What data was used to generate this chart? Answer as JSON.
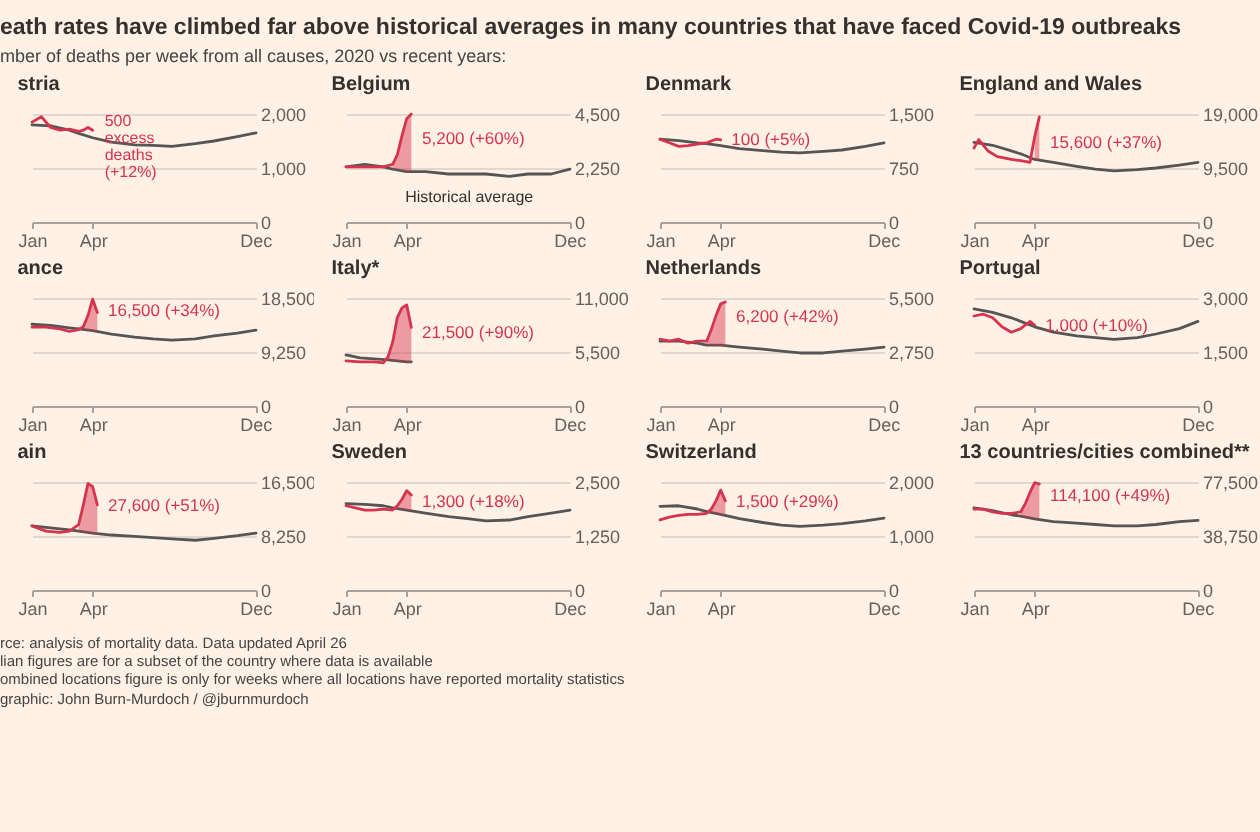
{
  "chart_data": [
    {
      "type": "other",
      "title": "eath rates have climbed far above historical averages in many countries that have faced Covid-19 outbreaks",
      "subtitle": "mber of deaths per week from all causes, 2020 vs recent years:"
    },
    {
      "type": "line",
      "title": "stria",
      "xlim": [
        "--01-01",
        "--12-02"
      ],
      "xticks": [
        {
          "value": "--01-01",
          "label": "Jan"
        },
        {
          "value": "--04-01",
          "label": "Apr"
        },
        {
          "value": "--12-01",
          "label": "Dec"
        }
      ],
      "ylim": [
        0,
        2000
      ],
      "yticks": [
        {
          "value": 0,
          "label": "0"
        },
        {
          "value": 1000,
          "label": "1,000"
        },
        {
          "value": 2000,
          "label": "2,000"
        }
      ],
      "grid": "y",
      "annotations": [
        {
          "text": "500\nexcess\ndeaths\n(+12%)",
          "x": "--04-01",
          "y": 1700
        }
      ],
      "series": [
        {
          "color": "#555555",
          "x": [
            "--01-01",
            "--01-29",
            "--02-26",
            "--03-11",
            "--04-01",
            "--04-29",
            "--06-03",
            "--07-01",
            "--07-29",
            "--09-02",
            "--09-30",
            "--11-04",
            "--12-02"
          ],
          "values": [
            1800,
            1780,
            1700,
            1640,
            1560,
            1480,
            1430,
            1420,
            1400,
            1450,
            1500,
            1580,
            1650
          ]
        },
        {
          "color": "#d6344e",
          "x": [
            "--01-01",
            "--01-15",
            "--01-29",
            "--02-12",
            "--02-26",
            "--03-11",
            "--03-18",
            "--03-25",
            "--04-01"
          ],
          "values": [
            1850,
            1950,
            1750,
            1700,
            1720,
            1680,
            1700,
            1750,
            1700
          ]
        }
      ]
    },
    {
      "type": "line",
      "title": "Belgium",
      "xlim": [
        "--01-01",
        "--12-02"
      ],
      "xticks": [
        {
          "value": "--01-01",
          "label": "Jan"
        },
        {
          "value": "--04-01",
          "label": "Apr"
        },
        {
          "value": "--12-01",
          "label": "Dec"
        }
      ],
      "ylim": [
        0,
        4500
      ],
      "yticks": [
        {
          "value": 0,
          "label": "0"
        },
        {
          "value": 2250,
          "label": "2,250"
        },
        {
          "value": 4500,
          "label": "4,500"
        }
      ],
      "grid": "y",
      "annotations": [
        {
          "text": "5,200 (+60%)",
          "x": "--04-15",
          "y": 3500
        },
        "Historical average"
      ],
      "series": [
        {
          "color": "#555555",
          "x": [
            "--01-01",
            "--01-29",
            "--02-26",
            "--03-11",
            "--04-01",
            "--04-29",
            "--06-03",
            "--07-01",
            "--07-29",
            "--09-02",
            "--09-30",
            "--11-04",
            "--12-02"
          ],
          "values": [
            2300,
            2400,
            2300,
            2200,
            2100,
            2100,
            2000,
            2000,
            2000,
            1900,
            2000,
            2000,
            2200
          ]
        },
        {
          "color": "#d6344e",
          "x": [
            "--01-01",
            "--01-15",
            "--01-29",
            "--02-12",
            "--02-26",
            "--03-11",
            "--03-18",
            "--03-25",
            "--04-01",
            "--04-08"
          ],
          "values": [
            2300,
            2300,
            2300,
            2300,
            2300,
            2400,
            2800,
            3600,
            4300,
            4500
          ],
          "lower": [
            null,
            null,
            null,
            null,
            null,
            2200,
            2200,
            2200,
            2100,
            2100
          ],
          "upper": [
            null,
            null,
            null,
            null,
            null,
            2400,
            2800,
            3600,
            4300,
            4500
          ]
        }
      ]
    },
    {
      "type": "line",
      "title": "Denmark",
      "xlim": [
        "--01-01",
        "--12-02"
      ],
      "xticks": [
        {
          "value": "--01-01",
          "label": "Jan"
        },
        {
          "value": "--04-01",
          "label": "Apr"
        },
        {
          "value": "--12-01",
          "label": "Dec"
        }
      ],
      "ylim": [
        0,
        1500
      ],
      "yticks": [
        {
          "value": 0,
          "label": "0"
        },
        750,
        {
          "value": 1500,
          "label": "1,500"
        }
      ],
      "grid": "y",
      "annotations": [
        {
          "text": "100 (+5%)",
          "x": "--04-08",
          "y": 1150
        }
      ],
      "series": [
        {
          "color": "#555555",
          "x": [
            "--01-01",
            "--01-29",
            "--02-26",
            "--03-11",
            "--04-01",
            "--04-29",
            "--06-03",
            "--07-01",
            "--07-29",
            "--09-02",
            "--09-30",
            "--11-04",
            "--12-02"
          ],
          "values": [
            1150,
            1130,
            1100,
            1090,
            1060,
            1020,
            990,
            970,
            960,
            980,
            1000,
            1050,
            1100
          ]
        },
        {
          "color": "#d6344e",
          "x": [
            "--01-01",
            "--01-15",
            "--01-29",
            "--02-12",
            "--02-26",
            "--03-11",
            "--03-25",
            "--04-01"
          ],
          "values": [
            1150,
            1100,
            1050,
            1060,
            1080,
            1100,
            1150,
            1140
          ]
        }
      ]
    },
    {
      "type": "line",
      "title": "England and Wales",
      "xlim": [
        "--01-01",
        "--12-02"
      ],
      "xticks": [
        {
          "value": "--01-01",
          "label": "Jan"
        },
        {
          "value": "--04-01",
          "label": "Apr"
        },
        {
          "value": "--12-01",
          "label": "Dec"
        }
      ],
      "ylim": [
        0,
        19000
      ],
      "yticks": [
        {
          "value": 0,
          "label": "0"
        },
        {
          "value": 9500,
          "label": "9,500"
        },
        {
          "value": 19000,
          "label": "19,000"
        }
      ],
      "grid": "y",
      "annotations": [
        {
          "text": "15,600 (+37%)",
          "x": "--04-15",
          "y": 14000
        }
      ],
      "series": [
        {
          "color": "#555555",
          "x": [
            "--01-01",
            "--01-29",
            "--02-26",
            "--03-11",
            "--04-01",
            "--04-29",
            "--06-03",
            "--07-01",
            "--07-29",
            "--09-02",
            "--09-30",
            "--11-04",
            "--12-02"
          ],
          "values": [
            14000,
            13500,
            12500,
            12000,
            11000,
            10500,
            9800,
            9300,
            9000,
            9200,
            9500,
            10000,
            10500
          ]
        },
        {
          "color": "#d6344e",
          "x": [
            "--01-01",
            "--01-08",
            "--01-22",
            "--02-05",
            "--02-26",
            "--03-11",
            "--03-25",
            "--04-01",
            "--04-08"
          ],
          "values": [
            13000,
            14500,
            12500,
            11500,
            11000,
            10800,
            10500,
            15000,
            18500
          ],
          "lower": [
            null,
            null,
            null,
            null,
            null,
            null,
            null,
            11000,
            10900
          ],
          "upper": [
            null,
            null,
            null,
            null,
            null,
            null,
            null,
            15000,
            18500
          ]
        }
      ]
    },
    {
      "type": "line",
      "title": "ance",
      "xlim": [
        "--01-01",
        "--12-02"
      ],
      "xticks": [
        {
          "value": "--01-01",
          "label": "Jan"
        },
        {
          "value": "--04-01",
          "label": "Apr"
        },
        {
          "value": "--12-01",
          "label": "Dec"
        }
      ],
      "ylim": [
        0,
        18500
      ],
      "yticks": [
        {
          "value": 0,
          "label": "0"
        },
        {
          "value": 9250,
          "label": "9,250"
        },
        {
          "value": 18500,
          "label": "18,500"
        }
      ],
      "grid": "y",
      "annotations": [
        {
          "text": "16,500 (+34%)",
          "x": "--04-15",
          "y": 16500
        }
      ],
      "series": [
        {
          "color": "#555555",
          "x": [
            "--01-01",
            "--01-29",
            "--02-26",
            "--03-11",
            "--04-01",
            "--04-29",
            "--06-03",
            "--07-01",
            "--07-29",
            "--09-02",
            "--09-30",
            "--11-04",
            "--12-02"
          ],
          "values": [
            14000,
            13800,
            13400,
            13200,
            12900,
            12300,
            11800,
            11500,
            11300,
            11500,
            12000,
            12500,
            13000
          ]
        },
        {
          "color": "#d6344e",
          "x": [
            "--01-01",
            "--01-22",
            "--02-12",
            "--02-26",
            "--03-11",
            "--03-18",
            "--03-25",
            "--04-01",
            "--04-08"
          ],
          "values": [
            13500,
            13500,
            13200,
            12800,
            13100,
            13600,
            15500,
            18300,
            16000
          ],
          "lower": [
            null,
            null,
            null,
            null,
            null,
            13100,
            13000,
            12900,
            12800
          ],
          "upper": [
            null,
            null,
            null,
            null,
            null,
            13600,
            15500,
            18300,
            16000
          ]
        }
      ]
    },
    {
      "type": "line",
      "title": "Italy*",
      "xlim": [
        "--01-01",
        "--12-02"
      ],
      "xticks": [
        {
          "value": "--01-01",
          "label": "Jan"
        },
        {
          "value": "--04-01",
          "label": "Apr"
        },
        {
          "value": "--12-01",
          "label": "Dec"
        }
      ],
      "ylim": [
        0,
        11000
      ],
      "yticks": [
        {
          "value": 0,
          "label": "0"
        },
        {
          "value": 5500,
          "label": "5,500"
        },
        {
          "value": 11000,
          "label": "11,000"
        }
      ],
      "grid": "y",
      "annotations": [
        {
          "text": "21,500 (+90%)",
          "x": "--04-15",
          "y": 7500
        }
      ],
      "series": [
        {
          "color": "#555555",
          "x": [
            "--01-01",
            "--01-22",
            "--02-12",
            "--03-04",
            "--03-18",
            "--04-01",
            "--04-08"
          ],
          "values": [
            5200,
            4900,
            4800,
            4700,
            4600,
            4500,
            4500
          ]
        },
        {
          "color": "#d6344e",
          "x": [
            "--01-01",
            "--01-22",
            "--02-12",
            "--02-26",
            "--03-04",
            "--03-11",
            "--03-18",
            "--03-25",
            "--04-01",
            "--04-08"
          ],
          "values": [
            4600,
            4500,
            4500,
            4400,
            5000,
            6500,
            9000,
            10000,
            10300,
            8000
          ],
          "lower": [
            null,
            null,
            null,
            null,
            4700,
            4650,
            4600,
            4550,
            4500,
            4500
          ],
          "upper": [
            null,
            null,
            null,
            null,
            5000,
            6500,
            9000,
            10000,
            10300,
            8000
          ]
        }
      ]
    },
    {
      "type": "line",
      "title": "Netherlands",
      "xlim": [
        "--01-01",
        "--12-02"
      ],
      "xticks": [
        {
          "value": "--01-01",
          "label": "Jan"
        },
        {
          "value": "--04-01",
          "label": "Apr"
        },
        {
          "value": "--12-01",
          "label": "Dec"
        }
      ],
      "ylim": [
        0,
        5500
      ],
      "yticks": [
        {
          "value": 0,
          "label": "0"
        },
        {
          "value": 2750,
          "label": "2,750"
        },
        {
          "value": 5500,
          "label": "5,500"
        }
      ],
      "grid": "y",
      "annotations": [
        {
          "text": "6,200 (+42%)",
          "x": "--04-15",
          "y": 4600
        }
      ],
      "series": [
        {
          "color": "#555555",
          "x": [
            "--01-01",
            "--01-29",
            "--02-26",
            "--03-11",
            "--04-01",
            "--04-29",
            "--06-03",
            "--07-01",
            "--07-29",
            "--09-02",
            "--09-30",
            "--11-04",
            "--12-02"
          ],
          "values": [
            3300,
            3300,
            3200,
            3100,
            3100,
            3000,
            2900,
            2800,
            2700,
            2700,
            2800,
            2900,
            3000
          ]
        },
        {
          "color": "#d6344e",
          "x": [
            "--01-01",
            "--01-15",
            "--01-29",
            "--02-12",
            "--02-26",
            "--03-11",
            "--03-18",
            "--03-25",
            "--04-01",
            "--04-08"
          ],
          "values": [
            3400,
            3300,
            3400,
            3200,
            3300,
            3300,
            3900,
            4600,
            5200,
            5300
          ],
          "lower": [
            null,
            null,
            null,
            null,
            null,
            3100,
            3100,
            3100,
            3100,
            3000
          ],
          "upper": [
            null,
            null,
            null,
            null,
            null,
            3300,
            3900,
            4600,
            5200,
            5300
          ]
        }
      ]
    },
    {
      "type": "line",
      "title": "Portugal",
      "xlim": [
        "--01-01",
        "--12-02"
      ],
      "xticks": [
        {
          "value": "--01-01",
          "label": "Jan"
        },
        {
          "value": "--04-01",
          "label": "Apr"
        },
        {
          "value": "--12-01",
          "label": "Dec"
        }
      ],
      "ylim": [
        0,
        3000
      ],
      "yticks": [
        {
          "value": 0,
          "label": "0"
        },
        {
          "value": 1500,
          "label": "1,500"
        },
        {
          "value": 3000,
          "label": "3,000"
        }
      ],
      "grid": "y",
      "annotations": [
        {
          "text": "1,000 (+10%)",
          "x": "--04-08",
          "y": 2250
        }
      ],
      "series": [
        {
          "color": "#555555",
          "x": [
            "--01-01",
            "--01-29",
            "--02-26",
            "--03-11",
            "--04-01",
            "--04-29",
            "--06-03",
            "--07-01",
            "--07-29",
            "--09-02",
            "--09-30",
            "--11-04",
            "--12-02"
          ],
          "values": [
            2700,
            2600,
            2450,
            2350,
            2200,
            2050,
            1950,
            1900,
            1850,
            1900,
            2000,
            2150,
            2350
          ]
        },
        {
          "color": "#d6344e",
          "x": [
            "--01-01",
            "--01-15",
            "--01-29",
            "--02-12",
            "--02-26",
            "--03-11",
            "--03-25",
            "--04-01"
          ],
          "values": [
            2500,
            2550,
            2450,
            2200,
            2050,
            2150,
            2350,
            2250
          ]
        }
      ]
    },
    {
      "type": "line",
      "title": "ain",
      "xlim": [
        "--01-01",
        "--12-02"
      ],
      "xticks": [
        {
          "value": "--01-01",
          "label": "Jan"
        },
        {
          "value": "--04-01",
          "label": "Apr"
        },
        {
          "value": "--12-01",
          "label": "Dec"
        }
      ],
      "ylim": [
        0,
        16500
      ],
      "yticks": [
        {
          "value": 0,
          "label": "0"
        },
        {
          "value": 8250,
          "label": "8,250"
        },
        {
          "value": 16500,
          "label": "16,500"
        }
      ],
      "grid": "y",
      "annotations": [
        {
          "text": "27,600 (+51%)",
          "x": "--04-15",
          "y": 13000
        }
      ],
      "series": [
        {
          "color": "#555555",
          "x": [
            "--01-01",
            "--01-29",
            "--02-26",
            "--03-11",
            "--04-01",
            "--04-29",
            "--06-03",
            "--07-01",
            "--07-29",
            "--09-02",
            "--09-30",
            "--11-04",
            "--12-02"
          ],
          "values": [
            9800,
            9500,
            9200,
            9000,
            8700,
            8400,
            8200,
            8000,
            7800,
            7600,
            7900,
            8300,
            8700
          ]
        },
        {
          "color": "#d6344e",
          "x": [
            "--01-01",
            "--01-22",
            "--02-12",
            "--02-26",
            "--03-11",
            "--03-18",
            "--03-25",
            "--04-01",
            "--04-08"
          ],
          "values": [
            9800,
            9000,
            8800,
            9000,
            10000,
            13000,
            16300,
            15800,
            13000
          ],
          "lower": [
            null,
            null,
            null,
            null,
            9000,
            8900,
            8800,
            8700,
            8650
          ],
          "upper": [
            null,
            null,
            null,
            null,
            10000,
            13000,
            16300,
            15800,
            13000
          ]
        }
      ]
    },
    {
      "type": "line",
      "title": "Sweden",
      "xlim": [
        "--01-01",
        "--12-02"
      ],
      "xticks": [
        {
          "value": "--01-01",
          "label": "Jan"
        },
        {
          "value": "--04-01",
          "label": "Apr"
        },
        {
          "value": "--12-01",
          "label": "Dec"
        }
      ],
      "ylim": [
        0,
        2500
      ],
      "yticks": [
        {
          "value": 0,
          "label": "0"
        },
        {
          "value": 1250,
          "label": "1,250"
        },
        {
          "value": 2500,
          "label": "2,500"
        }
      ],
      "grid": "y",
      "annotations": [
        {
          "text": "1,300 (+18%)",
          "x": "--04-15",
          "y": 2050
        }
      ],
      "series": [
        {
          "color": "#555555",
          "x": [
            "--01-01",
            "--01-29",
            "--02-26",
            "--03-11",
            "--04-01",
            "--04-29",
            "--06-03",
            "--07-01",
            "--07-29",
            "--09-02",
            "--09-30",
            "--11-04",
            "--12-02"
          ],
          "values": [
            2000,
            1980,
            1950,
            1900,
            1850,
            1780,
            1700,
            1650,
            1600,
            1620,
            1700,
            1780,
            1850
          ]
        },
        {
          "color": "#d6344e",
          "x": [
            "--01-01",
            "--01-15",
            "--01-29",
            "--02-12",
            "--02-26",
            "--03-11",
            "--03-18",
            "--03-25",
            "--04-01",
            "--04-08"
          ],
          "values": [
            1950,
            1900,
            1850,
            1850,
            1870,
            1850,
            1950,
            2100,
            2300,
            2200
          ],
          "lower": [
            null,
            null,
            null,
            null,
            null,
            null,
            1890,
            1870,
            1850,
            1840
          ],
          "upper": [
            null,
            null,
            null,
            null,
            null,
            null,
            1950,
            2100,
            2300,
            2200
          ]
        }
      ]
    },
    {
      "type": "line",
      "title": "Switzerland",
      "xlim": [
        "--01-01",
        "--12-02"
      ],
      "xticks": [
        {
          "value": "--01-01",
          "label": "Jan"
        },
        {
          "value": "--04-01",
          "label": "Apr"
        },
        {
          "value": "--12-01",
          "label": "Dec"
        }
      ],
      "ylim": [
        0,
        2000
      ],
      "yticks": [
        {
          "value": 0,
          "label": "0"
        },
        {
          "value": 1000,
          "label": "1,000"
        },
        {
          "value": 2000,
          "label": "2,000"
        }
      ],
      "grid": "y",
      "annotations": [
        {
          "text": "1,500 (+29%)",
          "x": "--04-15",
          "y": 1650
        }
      ],
      "series": [
        {
          "color": "#555555",
          "x": [
            "--01-01",
            "--01-29",
            "--02-26",
            "--03-11",
            "--04-01",
            "--04-29",
            "--06-03",
            "--07-01",
            "--07-29",
            "--09-02",
            "--09-30",
            "--11-04",
            "--12-02"
          ],
          "values": [
            1550,
            1560,
            1500,
            1450,
            1400,
            1320,
            1250,
            1200,
            1180,
            1200,
            1230,
            1280,
            1330
          ]
        },
        {
          "color": "#d6344e",
          "x": [
            "--01-01",
            "--01-15",
            "--01-29",
            "--02-12",
            "--02-26",
            "--03-11",
            "--03-18",
            "--03-25",
            "--04-01",
            "--04-08"
          ],
          "values": [
            1300,
            1350,
            1380,
            1400,
            1400,
            1420,
            1500,
            1650,
            1850,
            1650
          ],
          "lower": [
            null,
            null,
            null,
            null,
            null,
            null,
            1430,
            1420,
            1400,
            1390
          ],
          "upper": [
            null,
            null,
            null,
            null,
            null,
            null,
            1500,
            1650,
            1850,
            1650
          ]
        }
      ]
    },
    {
      "type": "line",
      "title": "13 countries/cities combined**",
      "xlim": [
        "--01-01",
        "--12-02"
      ],
      "xticks": [
        {
          "value": "--01-01",
          "label": "Jan"
        },
        {
          "value": "--04-01",
          "label": "Apr"
        },
        {
          "value": "--12-01",
          "label": "Dec"
        }
      ],
      "ylim": [
        0,
        77500
      ],
      "yticks": [
        {
          "value": 0,
          "label": "0"
        },
        {
          "value": 38750,
          "label": "38,750"
        },
        {
          "value": 77500,
          "label": "77,500"
        }
      ],
      "grid": "y",
      "annotations": [
        {
          "text": "114,100 (+49%)",
          "x": "--04-15",
          "y": 68000
        }
      ],
      "series": [
        {
          "color": "#555555",
          "x": [
            "--01-01",
            "--01-29",
            "--02-26",
            "--03-11",
            "--04-01",
            "--04-29",
            "--06-03",
            "--07-01",
            "--07-29",
            "--09-02",
            "--09-30",
            "--11-04",
            "--12-02"
          ],
          "values": [
            59000,
            57000,
            54000,
            53000,
            51000,
            49000,
            48000,
            47000,
            46000,
            46000,
            47000,
            49000,
            50000
          ]
        },
        {
          "color": "#d6344e",
          "x": [
            "--01-01",
            "--01-15",
            "--01-29",
            "--02-12",
            "--02-26",
            "--03-11",
            "--03-18",
            "--03-25",
            "--04-01",
            "--04-08"
          ],
          "values": [
            58000,
            58000,
            56000,
            55000,
            55000,
            56000,
            62000,
            70000,
            77000,
            76000
          ],
          "lower": [
            null,
            null,
            null,
            null,
            null,
            53000,
            52000,
            52000,
            51000,
            51000
          ],
          "upper": [
            null,
            null,
            null,
            null,
            null,
            56000,
            62000,
            70000,
            77000,
            76000
          ]
        }
      ]
    },
    {
      "type": "other",
      "annotations": [
        "rce: analysis of mortality data. Data updated April 26",
        "lian figures are for a subset of the country where data is available",
        "ombined locations figure is only for weeks where all locations have reported mortality statistics",
        "graphic: John Burn-Murdoch / @jburnmurdoch"
      ]
    }
  ]
}
